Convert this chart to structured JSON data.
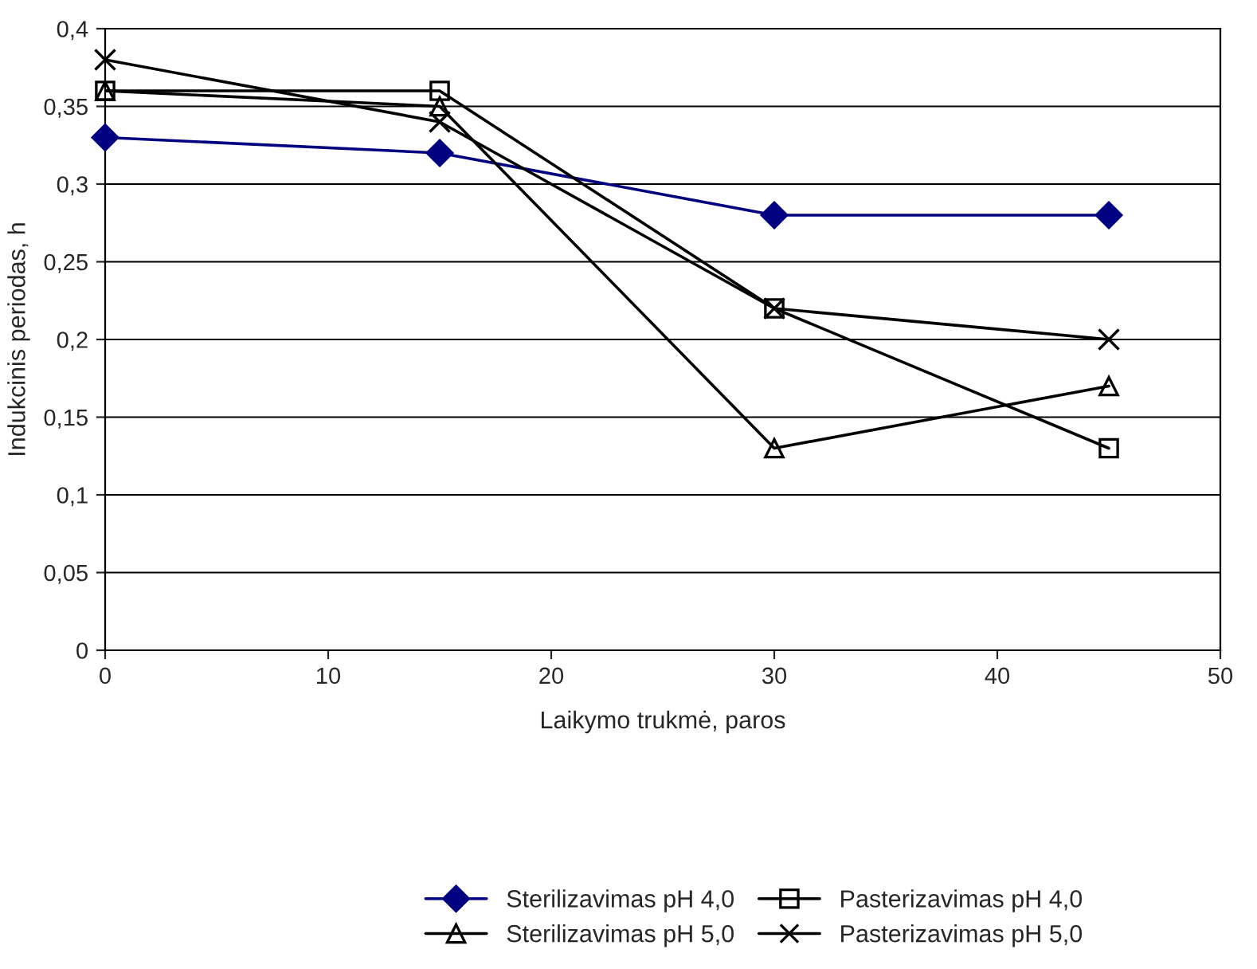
{
  "chart_data": {
    "type": "line",
    "xlabel": "Laikymo trukmė, paros",
    "ylabel": "Indukcinis periodas, h",
    "xlim": [
      0,
      50
    ],
    "xticks": [
      0,
      10,
      20,
      30,
      40,
      50
    ],
    "ylim": [
      0,
      0.4
    ],
    "yticks": [
      {
        "value": 0,
        "label": "0"
      },
      {
        "value": 0.05,
        "label": "0,05"
      },
      {
        "value": 0.1,
        "label": "0,1"
      },
      {
        "value": 0.15,
        "label": "0,15"
      },
      {
        "value": 0.2,
        "label": "0,2"
      },
      {
        "value": 0.25,
        "label": "0,25"
      },
      {
        "value": 0.3,
        "label": "0,3"
      },
      {
        "value": 0.35,
        "label": "0,35"
      },
      {
        "value": 0.4,
        "label": "0,4"
      }
    ],
    "grid": "y",
    "legend": "bottom",
    "x": [
      0,
      15,
      30,
      45
    ],
    "series": [
      {
        "name": "Sterilizavimas pH 4,0",
        "color": "#000080",
        "marker": "diamond",
        "values": [
          0.33,
          0.32,
          0.28,
          0.28
        ]
      },
      {
        "name": "Pasterizavimas pH 4,0",
        "color": "#000000",
        "marker": "square",
        "values": [
          0.36,
          0.36,
          0.22,
          0.13
        ]
      },
      {
        "name": "Sterilizavimas pH 5,0",
        "color": "#000000",
        "marker": "triangle",
        "values": [
          0.36,
          0.35,
          0.13,
          0.17
        ]
      },
      {
        "name": "Pasterizavimas pH 5,0",
        "color": "#000000",
        "marker": "cross",
        "values": [
          0.38,
          0.34,
          0.22,
          0.2
        ]
      }
    ]
  }
}
